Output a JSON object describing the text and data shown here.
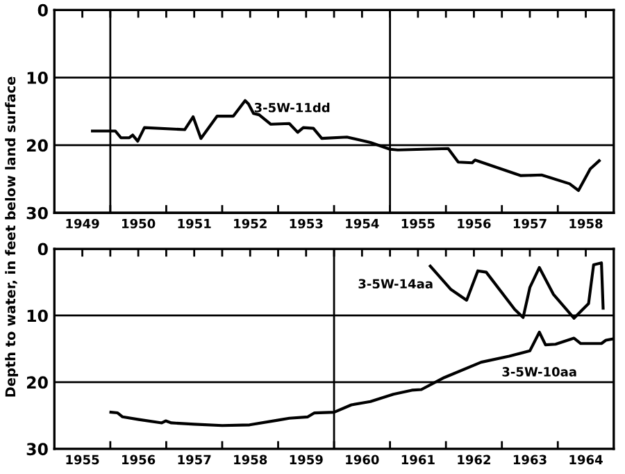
{
  "chart_data": [
    {
      "type": "line",
      "ylabel": "Depth to water, in feet below land surface",
      "xlim": [
        1949,
        1959
      ],
      "ylim": [
        30,
        0
      ],
      "yticks": [
        0,
        10,
        20,
        30
      ],
      "xticks": [
        {
          "value": 1949.5,
          "label": "1949"
        },
        {
          "value": 1950,
          "label": null
        },
        {
          "value": 1950.5,
          "label": "1950"
        },
        {
          "value": 1951,
          "label": null
        },
        {
          "value": 1951.5,
          "label": "1951"
        },
        {
          "value": 1952,
          "label": null
        },
        {
          "value": 1952.5,
          "label": "1952"
        },
        {
          "value": 1953,
          "label": null
        },
        {
          "value": 1953.5,
          "label": "1953"
        },
        {
          "value": 1954,
          "label": null
        },
        {
          "value": 1954.5,
          "label": "1954"
        },
        {
          "value": 1955,
          "label": null
        },
        {
          "value": 1955.5,
          "label": "1955"
        },
        {
          "value": 1956,
          "label": null
        },
        {
          "value": 1956.5,
          "label": "1956"
        },
        {
          "value": 1957,
          "label": null
        },
        {
          "value": 1957.5,
          "label": "1957"
        },
        {
          "value": 1958,
          "label": null
        },
        {
          "value": 1958.5,
          "label": "1958"
        }
      ],
      "grid": "y",
      "ref_lines": [
        {
          "axis": "x",
          "value": 1950,
          "label": null
        },
        {
          "axis": "x",
          "value": 1955,
          "label": null
        }
      ],
      "series": [
        {
          "name": "3-5W-11dd",
          "color": "#000000",
          "x": [
            1949.68,
            1950.09,
            1950.19,
            1950.34,
            1950.4,
            1950.49,
            1950.61,
            1951.33,
            1951.48,
            1951.62,
            1951.91,
            1952.2,
            1952.41,
            1952.47,
            1952.56,
            1952.66,
            1952.87,
            1953.2,
            1953.35,
            1953.45,
            1953.63,
            1953.78,
            1954.23,
            1954.65,
            1955.0,
            1955.14,
            1956.04,
            1956.22,
            1956.47,
            1956.52,
            1957.34,
            1957.71,
            1958.21,
            1958.37,
            1958.58,
            1958.74
          ],
          "values": [
            17.9,
            17.9,
            18.9,
            18.9,
            18.5,
            19.4,
            17.4,
            17.7,
            15.8,
            19.0,
            15.7,
            15.7,
            13.4,
            13.9,
            15.3,
            15.5,
            16.9,
            16.8,
            18.1,
            17.4,
            17.5,
            19.0,
            18.8,
            19.6,
            20.6,
            20.7,
            20.5,
            22.5,
            22.6,
            22.2,
            24.5,
            24.4,
            25.7,
            26.7,
            23.5,
            22.3
          ]
        }
      ]
    },
    {
      "type": "line",
      "xlim": [
        1955,
        1965
      ],
      "ylim": [
        30,
        0
      ],
      "yticks": [
        0,
        10,
        20,
        30
      ],
      "xticks": [
        {
          "value": 1955.5,
          "label": "1955"
        },
        {
          "value": 1956,
          "label": null
        },
        {
          "value": 1956.5,
          "label": "1956"
        },
        {
          "value": 1957,
          "label": null
        },
        {
          "value": 1957.5,
          "label": "1957"
        },
        {
          "value": 1958,
          "label": null
        },
        {
          "value": 1958.5,
          "label": "1958"
        },
        {
          "value": 1959,
          "label": null
        },
        {
          "value": 1959.5,
          "label": "1959"
        },
        {
          "value": 1960,
          "label": null
        },
        {
          "value": 1960.5,
          "label": "1960"
        },
        {
          "value": 1961,
          "label": null
        },
        {
          "value": 1961.5,
          "label": "1961"
        },
        {
          "value": 1962,
          "label": null
        },
        {
          "value": 1962.5,
          "label": "1962"
        },
        {
          "value": 1963,
          "label": null
        },
        {
          "value": 1963.5,
          "label": "1963"
        },
        {
          "value": 1964,
          "label": null
        },
        {
          "value": 1964.5,
          "label": "1964"
        }
      ],
      "grid": "y",
      "ref_lines": [
        {
          "axis": "x",
          "value": 1960,
          "label": null
        }
      ],
      "series": [
        {
          "name": "3-5W-14aa",
          "color": "#000000",
          "x": [
            1961.72,
            1962.09,
            1962.37,
            1962.57,
            1962.72,
            1963.23,
            1963.38,
            1963.5,
            1963.67,
            1963.92,
            1964.29,
            1964.55,
            1964.64,
            1964.78,
            1964.81
          ],
          "values": [
            2.6,
            6.1,
            7.7,
            3.3,
            3.5,
            9.1,
            10.3,
            5.8,
            2.8,
            6.8,
            10.4,
            8.2,
            2.4,
            2.1,
            8.9
          ]
        },
        {
          "name": "3-5W-10aa",
          "color": "#000000",
          "x": [
            1956.01,
            1956.13,
            1956.22,
            1956.51,
            1956.92,
            1956.99,
            1957.09,
            1957.5,
            1958.0,
            1958.49,
            1958.99,
            1959.2,
            1959.53,
            1959.65,
            1960.0,
            1960.31,
            1960.65,
            1961.06,
            1961.39,
            1961.56,
            1961.97,
            1962.63,
            1963.13,
            1963.5,
            1963.67,
            1963.78,
            1963.96,
            1964.29,
            1964.41,
            1964.78,
            1964.86,
            1964.99
          ],
          "values": [
            24.5,
            24.6,
            25.2,
            25.6,
            26.1,
            25.8,
            26.1,
            26.3,
            26.5,
            26.4,
            25.7,
            25.4,
            25.2,
            24.6,
            24.5,
            23.4,
            22.9,
            21.8,
            21.2,
            21.1,
            19.3,
            17.0,
            16.1,
            15.3,
            12.5,
            14.4,
            14.3,
            13.4,
            14.2,
            14.2,
            13.7,
            13.5
          ]
        }
      ]
    }
  ]
}
